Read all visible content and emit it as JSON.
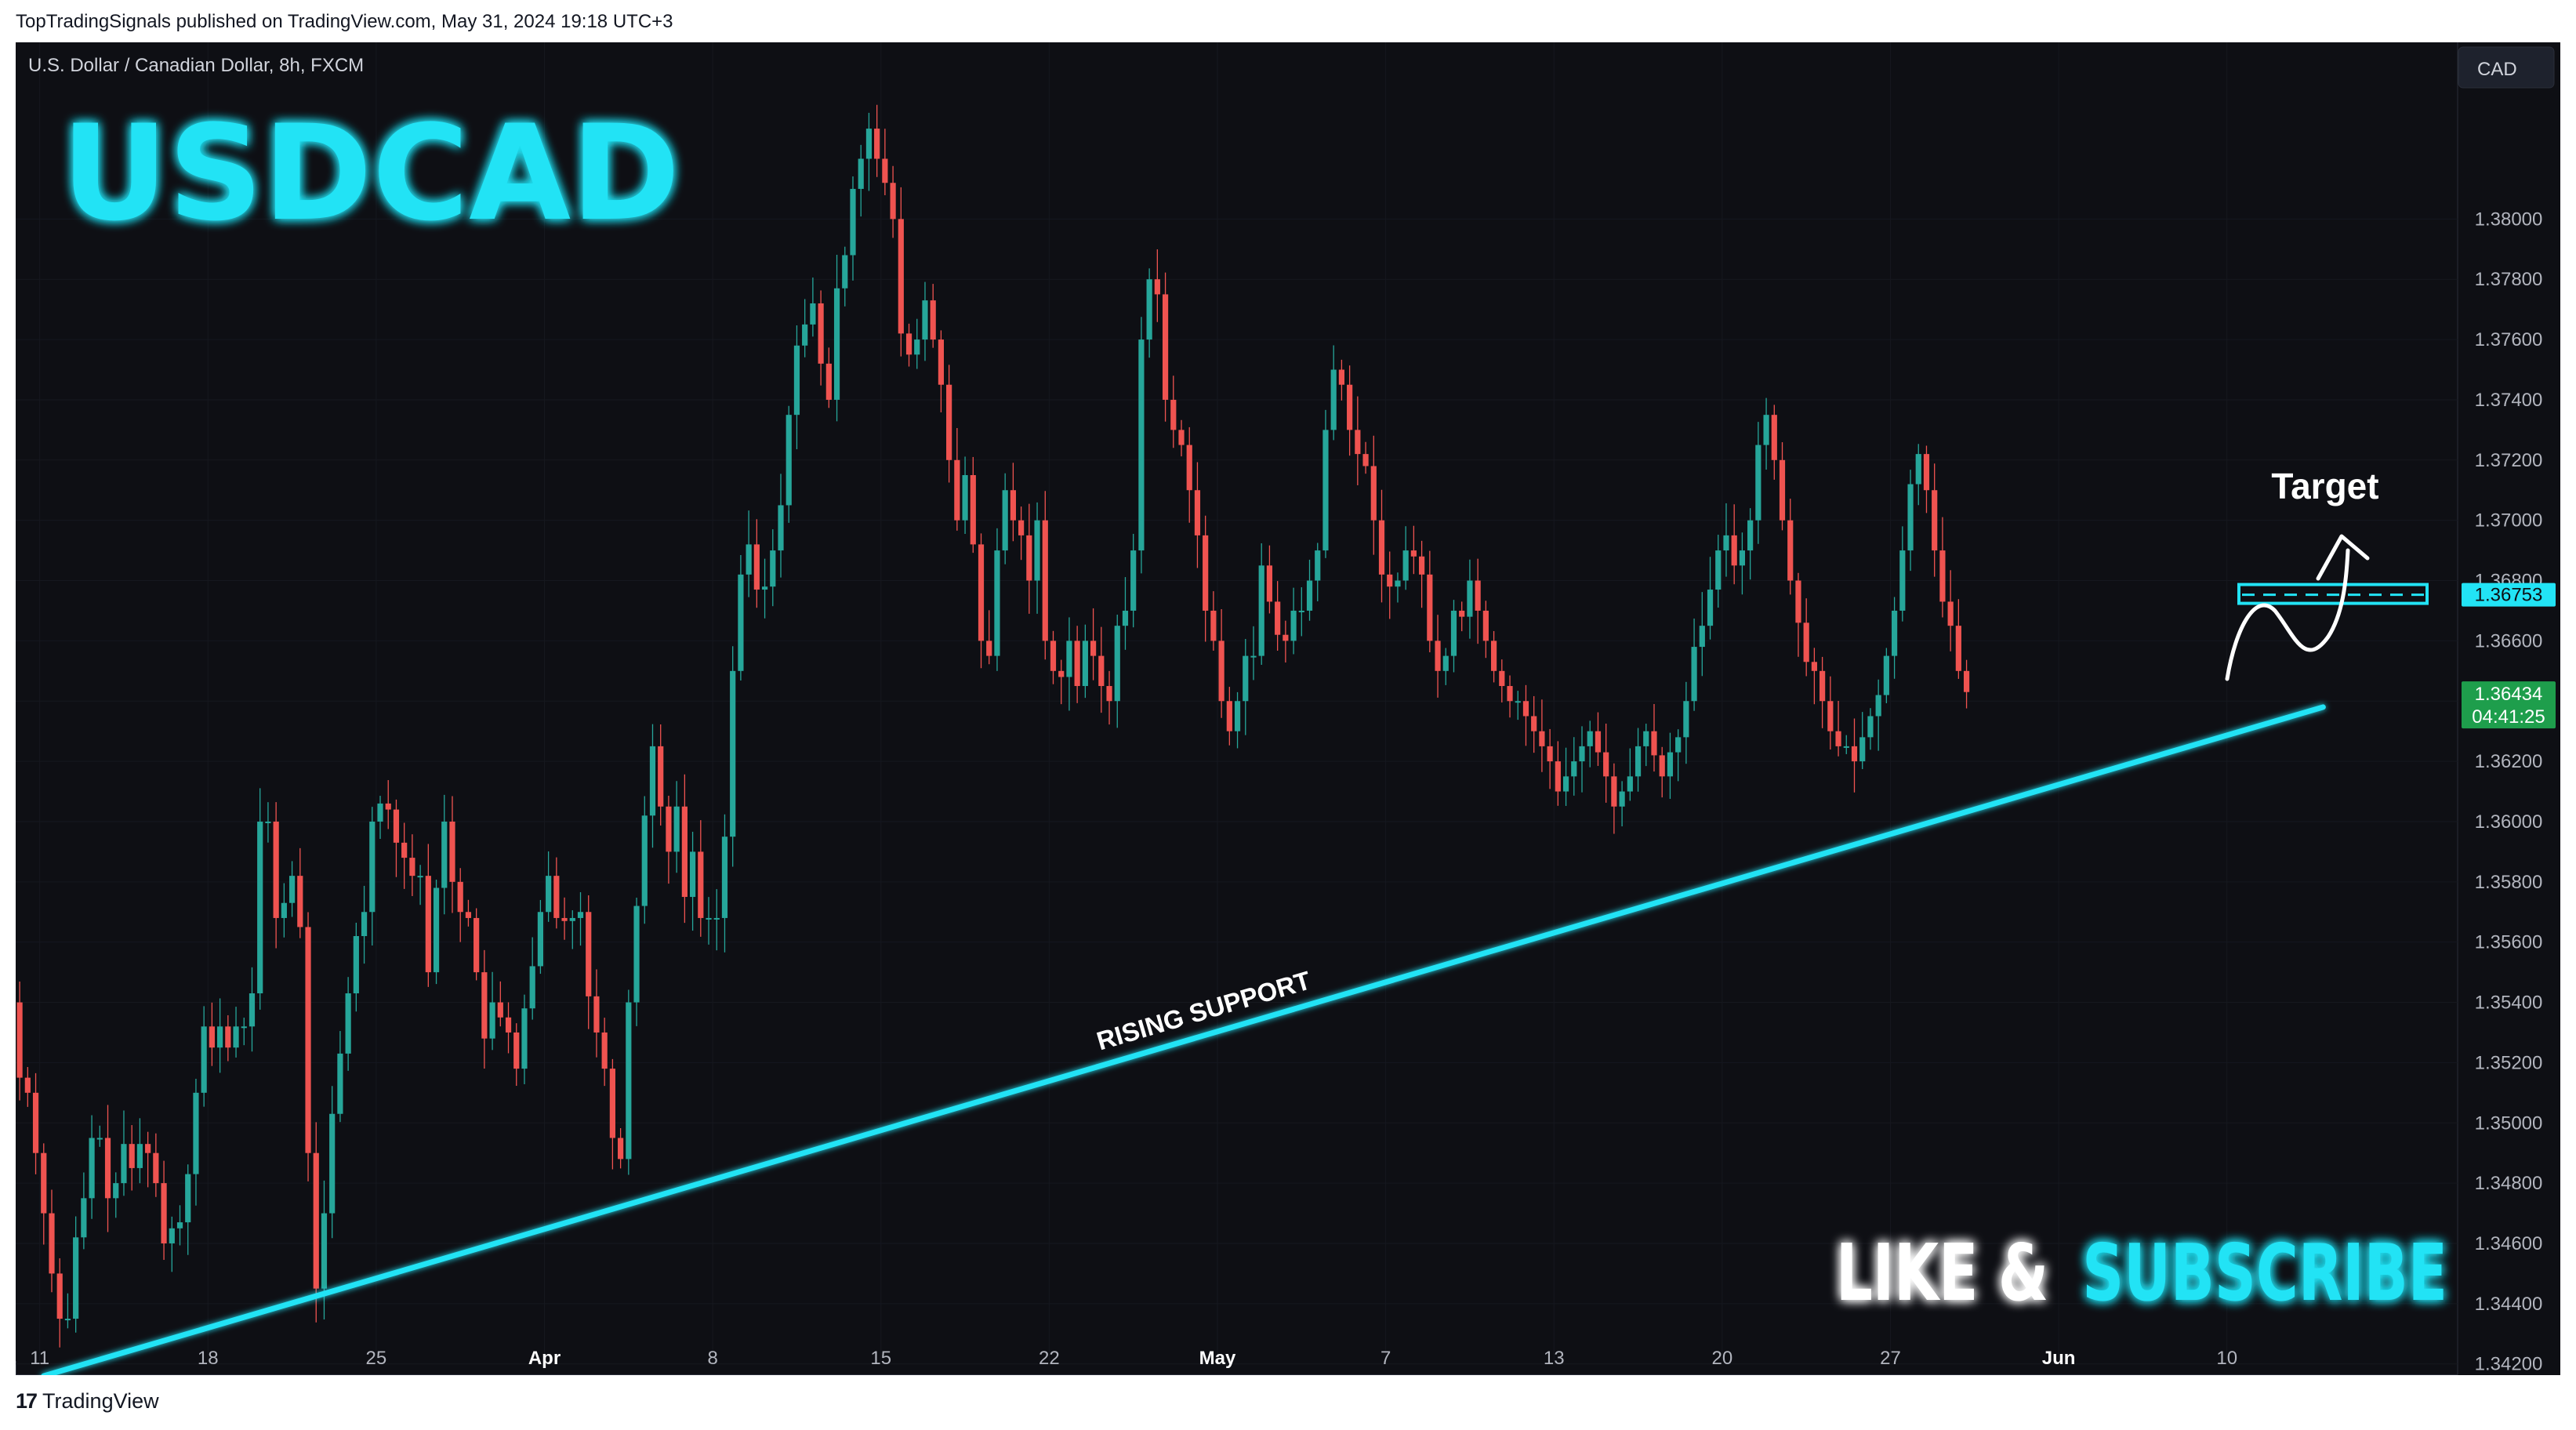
{
  "header": {
    "published_line": "TopTradingSignals published on TradingView.com, May 31, 2024 19:18 UTC+3"
  },
  "footer": {
    "logo_icon": "tradingview-logo-icon",
    "logo_text": "TradingView"
  },
  "chart": {
    "symbol_line": "U.S. Dollar / Canadian Dollar, 8h, FXCM",
    "currency_button": "CAD",
    "big_title": "USDCAD",
    "support_label": "RISING SUPPORT",
    "target_label": "Target",
    "cta": {
      "part1": "LIKE &",
      "part2": "SUBSCRIBE"
    },
    "colors": {
      "background": "#0e0f14",
      "up": "#26a69a",
      "down": "#ef5350",
      "accent": "#22e3f5",
      "price_label": "#1e9e4c"
    }
  },
  "chart_data": {
    "type": "candlestick",
    "instrument": "USDCAD",
    "timeframe": "8h",
    "ylim": [
      1.3405,
      1.3855
    ],
    "price_ticks": [
      "1.38000",
      "1.37800",
      "1.37600",
      "1.37400",
      "1.37200",
      "1.37000",
      "1.36800",
      "1.36600",
      "1.36400",
      "1.36200",
      "1.36000",
      "1.35800",
      "1.35600",
      "1.35400",
      "1.35200",
      "1.35000",
      "1.34800",
      "1.34600",
      "1.34400",
      "1.34200"
    ],
    "date_labels": [
      {
        "label": "11",
        "slot": 3
      },
      {
        "label": "18",
        "slot": 24
      },
      {
        "label": "25",
        "slot": 45
      },
      {
        "label": "Apr",
        "slot": 66
      },
      {
        "label": "8",
        "slot": 87
      },
      {
        "label": "15",
        "slot": 108
      },
      {
        "label": "22",
        "slot": 129
      },
      {
        "label": "May",
        "slot": 150
      },
      {
        "label": "7",
        "slot": 171
      },
      {
        "label": "13",
        "slot": 192
      },
      {
        "label": "20",
        "slot": 213
      },
      {
        "label": "27",
        "slot": 234
      },
      {
        "label": "Jun",
        "slot": 255
      },
      {
        "label": "10",
        "slot": 276
      }
    ],
    "last_price": "1.36434",
    "countdown": "04:41:25",
    "target_price": "1.36753",
    "target_value": 1.36753,
    "support_line": {
      "start": {
        "slot": 3.5,
        "price": 1.3416
      },
      "end": {
        "slot": 288,
        "price": 1.3638
      }
    },
    "closes": [
      1.3515,
      1.351,
      1.349,
      1.347,
      1.345,
      1.3435,
      1.3435,
      1.3462,
      1.3475,
      1.3495,
      1.3495,
      1.3475,
      1.348,
      1.3493,
      1.3485,
      1.3493,
      1.349,
      1.348,
      1.346,
      1.3465,
      1.3467,
      1.3483,
      1.351,
      1.3532,
      1.3525,
      1.3532,
      1.3525,
      1.3532,
      1.3532,
      1.3543,
      1.36,
      1.36,
      1.3568,
      1.3573,
      1.3582,
      1.3565,
      1.349,
      1.3445,
      1.347,
      1.3503,
      1.3523,
      1.3543,
      1.3562,
      1.357,
      1.36,
      1.3606,
      1.3604,
      1.3593,
      1.3588,
      1.3582,
      1.3582,
      1.355,
      1.3578,
      1.36,
      1.358,
      1.357,
      1.3568,
      1.355,
      1.3528,
      1.354,
      1.3535,
      1.353,
      1.3518,
      1.3538,
      1.3552,
      1.357,
      1.3582,
      1.3568,
      1.3567,
      1.3568,
      1.357,
      1.3542,
      1.353,
      1.3518,
      1.3495,
      1.3488,
      1.354,
      1.3572,
      1.3602,
      1.3625,
      1.3605,
      1.359,
      1.3605,
      1.3575,
      1.359,
      1.3568,
      1.3568,
      1.3568,
      1.3595,
      1.365,
      1.3682,
      1.3692,
      1.3677,
      1.3678,
      1.369,
      1.3705,
      1.3735,
      1.3758,
      1.3765,
      1.3772,
      1.3752,
      1.374,
      1.3777,
      1.3788,
      1.381,
      1.382,
      1.383,
      1.382,
      1.3812,
      1.38,
      1.3762,
      1.3755,
      1.376,
      1.3773,
      1.376,
      1.3745,
      1.372,
      1.37,
      1.3715,
      1.3692,
      1.366,
      1.3655,
      1.369,
      1.371,
      1.37,
      1.3695,
      1.368,
      1.37,
      1.366,
      1.365,
      1.3648,
      1.366,
      1.3645,
      1.366,
      1.3655,
      1.3645,
      1.364,
      1.3665,
      1.367,
      1.369,
      1.376,
      1.378,
      1.3775,
      1.374,
      1.373,
      1.3725,
      1.371,
      1.3695,
      1.367,
      1.366,
      1.364,
      1.363,
      1.364,
      1.3655,
      1.3655,
      1.3685,
      1.3673,
      1.3662,
      1.366,
      1.367,
      1.367,
      1.368,
      1.369,
      1.373,
      1.375,
      1.3745,
      1.373,
      1.3722,
      1.3718,
      1.37,
      1.3682,
      1.3678,
      1.368,
      1.369,
      1.3688,
      1.3682,
      1.366,
      1.365,
      1.3655,
      1.367,
      1.3668,
      1.368,
      1.367,
      1.366,
      1.365,
      1.3645,
      1.364,
      1.364,
      1.3635,
      1.363,
      1.3625,
      1.362,
      1.361,
      1.3615,
      1.362,
      1.3625,
      1.363,
      1.3623,
      1.3615,
      1.3605,
      1.361,
      1.3615,
      1.3625,
      1.363,
      1.3622,
      1.3615,
      1.3623,
      1.3628,
      1.364,
      1.3658,
      1.3665,
      1.3677,
      1.369,
      1.3695,
      1.3685,
      1.369,
      1.37,
      1.3725,
      1.3735,
      1.372,
      1.37,
      1.368,
      1.3666,
      1.3653,
      1.365,
      1.364,
      1.363,
      1.3625,
      1.3625,
      1.362,
      1.3628,
      1.3635,
      1.3642,
      1.3655,
      1.367,
      1.369,
      1.3712,
      1.3722,
      1.371,
      1.369,
      1.3673,
      1.3665,
      1.365,
      1.3643
    ]
  }
}
